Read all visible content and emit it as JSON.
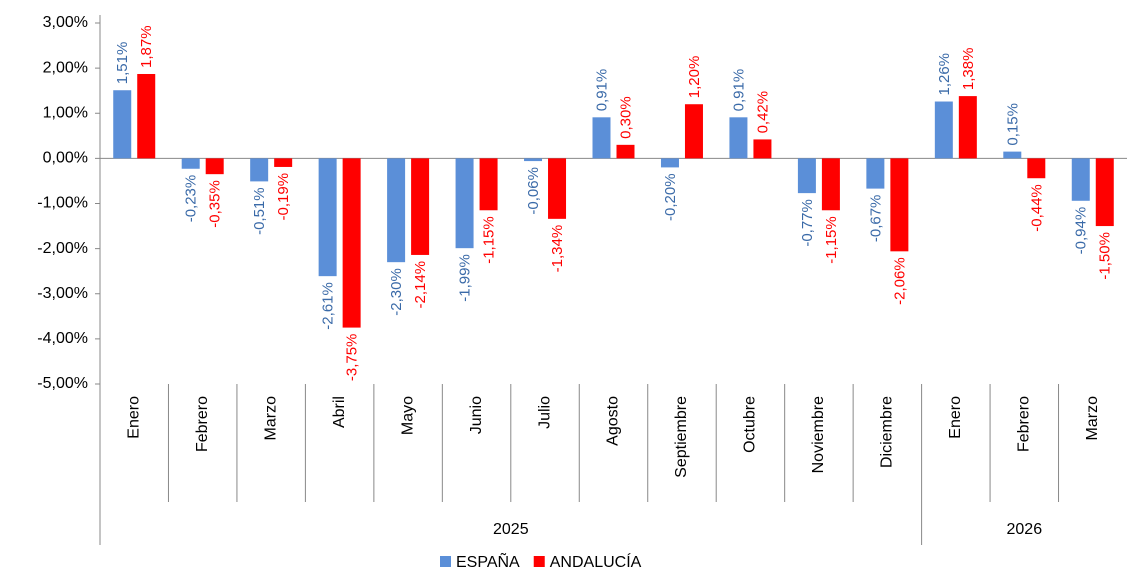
{
  "chart_data": {
    "type": "bar",
    "categories": [
      "Enero",
      "Febrero",
      "Marzo",
      "Abril",
      "Mayo",
      "Junio",
      "Julio",
      "Agosto",
      "Septiembre",
      "Octubre",
      "Noviembre",
      "Diciembre",
      "Enero",
      "Febrero",
      "Marzo"
    ],
    "groups": [
      {
        "name": "2025",
        "count": 12
      },
      {
        "name": "2026",
        "count": 3
      }
    ],
    "series": [
      {
        "name": "ESPAÑA",
        "color": "#5b8fd8",
        "label_color": "#3a6aa8",
        "values": [
          1.51,
          -0.23,
          -0.51,
          -2.61,
          -2.3,
          -1.99,
          -0.06,
          0.91,
          -0.2,
          0.91,
          -0.77,
          -0.67,
          1.26,
          0.15,
          -0.94
        ],
        "value_labels": [
          "1,51%",
          "-0,23%",
          "-0,51%",
          "-2,61%",
          "-2,30%",
          "-1,99%",
          "-0,06%",
          "0,91%",
          "-0,20%",
          "0,91%",
          "-0,77%",
          "-0,67%",
          "1,26%",
          "0,15%",
          "-0,94%"
        ]
      },
      {
        "name": "ANDALUCÍA",
        "color": "#ff0000",
        "label_color": "#ff0000",
        "values": [
          1.87,
          -0.35,
          -0.19,
          -3.75,
          -2.14,
          -1.15,
          -1.34,
          0.3,
          1.2,
          0.42,
          -1.15,
          -2.06,
          1.38,
          -0.44,
          -1.5
        ],
        "value_labels": [
          "1,87%",
          "-0,35%",
          "-0,19%",
          "-3,75%",
          "-2,14%",
          "-1,15%",
          "-1,34%",
          "0,30%",
          "1,20%",
          "0,42%",
          "-1,15%",
          "-2,06%",
          "1,38%",
          "-0,44%",
          "-1,50%"
        ]
      }
    ],
    "ylim": [
      -5,
      3
    ],
    "yticks": [
      {
        "value": -5,
        "label": "-5,00%"
      },
      {
        "value": -4,
        "label": "-4,00%"
      },
      {
        "value": -3,
        "label": "-3,00%"
      },
      {
        "value": -2,
        "label": "-2,00%"
      },
      {
        "value": -1,
        "label": "-1,00%"
      },
      {
        "value": 0,
        "label": "0,00%"
      },
      {
        "value": 1,
        "label": "1,00%"
      },
      {
        "value": 2,
        "label": "2,00%"
      },
      {
        "value": 3,
        "label": "3,00%"
      }
    ],
    "grid": false,
    "legend": "bottom"
  }
}
